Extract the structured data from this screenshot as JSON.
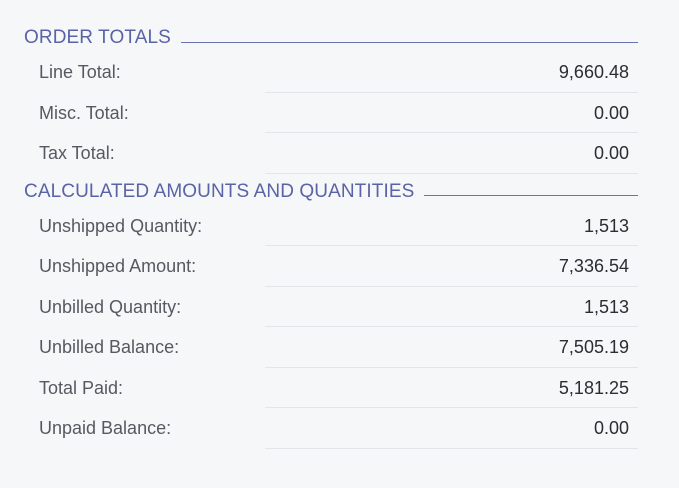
{
  "order_totals": {
    "title": "ORDER TOTALS",
    "rows": [
      {
        "label": "Line Total:",
        "value": "9,660.48"
      },
      {
        "label": "Misc. Total:",
        "value": "0.00"
      },
      {
        "label": "Tax Total:",
        "value": "0.00"
      }
    ]
  },
  "calculated": {
    "title": "CALCULATED AMOUNTS AND QUANTITIES",
    "rows": [
      {
        "label": "Unshipped Quantity:",
        "value": "1,513"
      },
      {
        "label": "Unshipped Amount:",
        "value": "7,336.54"
      },
      {
        "label": "Unbilled Quantity:",
        "value": "1,513"
      },
      {
        "label": "Unbilled Balance:",
        "value": "7,505.19"
      },
      {
        "label": "Total Paid:",
        "value": "5,181.25"
      },
      {
        "label": "Unpaid Balance:",
        "value": "0.00"
      }
    ]
  },
  "colors": {
    "section_title": "#5a63a6",
    "background": "#f6f7f9"
  }
}
